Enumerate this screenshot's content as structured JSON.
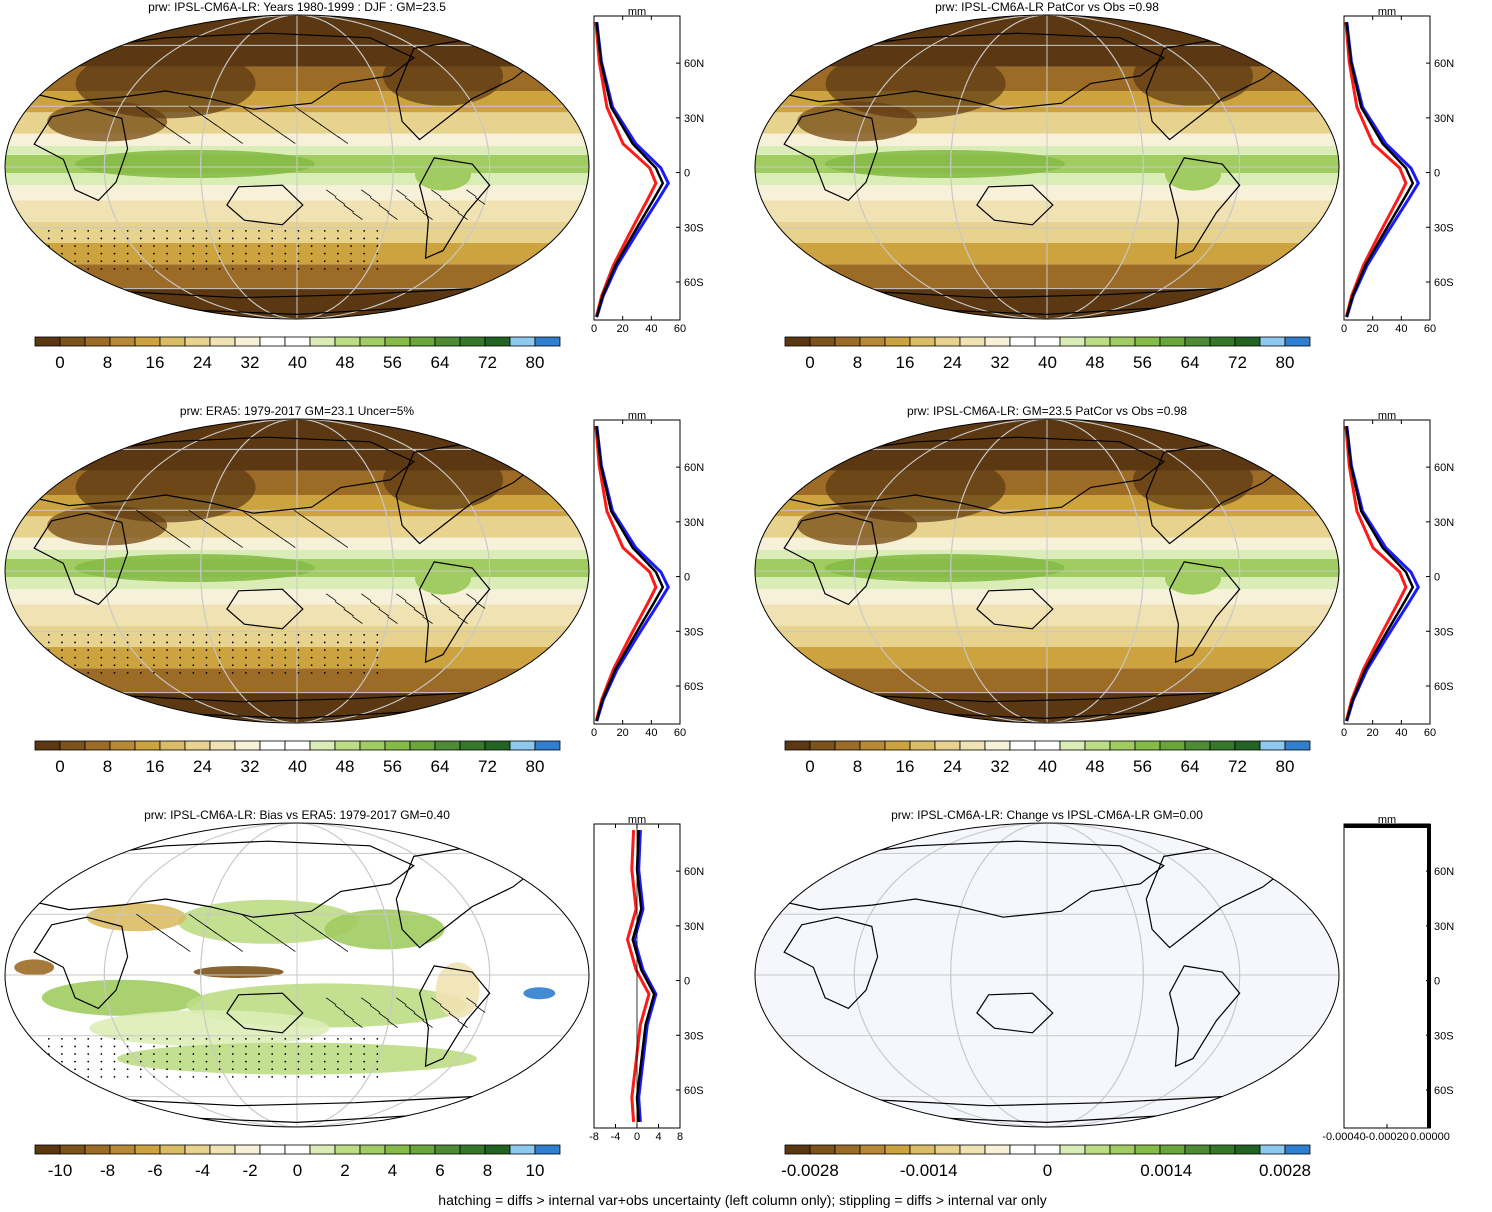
{
  "colorscales": {
    "prw": [
      "#5b3812",
      "#7c5219",
      "#9c6c26",
      "#b88934",
      "#cca33f",
      "#d9bc63",
      "#e7d28e",
      "#f0e2b2",
      "#f7f1d9",
      "#ffffff",
      "#ffffff",
      "#dbedb6",
      "#bddd85",
      "#a1cc61",
      "#85bb47",
      "#68a53b",
      "#4d8c34",
      "#357829",
      "#226421",
      "#8dc8ee",
      "#2f7fd0"
    ],
    "diff": [
      "#5b3812",
      "#7c5219",
      "#9c6c26",
      "#b88934",
      "#cca33f",
      "#d9bc63",
      "#e7d28e",
      "#f0e2b2",
      "#f7f1d9",
      "#ffffff",
      "#ffffff",
      "#dbedb6",
      "#bddd85",
      "#a1cc61",
      "#85bb47",
      "#68a53b",
      "#4d8c34",
      "#357829",
      "#226421",
      "#8dc8ee",
      "#2f7fd0"
    ]
  },
  "panels": [
    {
      "title": "prw: IPSL-CM6A-LR: Years 1980-1999 : DJF : GM=23.5",
      "map_style": "prw",
      "hatch": true,
      "profile": {
        "unit": "mm",
        "x_ticks": [
          "0",
          "20",
          "40",
          "60"
        ],
        "type": "prw"
      },
      "colorbar": {
        "scale": "prw",
        "labels": [
          "0",
          "8",
          "16",
          "24",
          "32",
          "40",
          "48",
          "56",
          "64",
          "72",
          "80"
        ]
      }
    },
    {
      "title": "prw: IPSL-CM6A-LR PatCor vs Obs =0.98",
      "map_style": "prw",
      "hatch": false,
      "profile": {
        "unit": "mm",
        "x_ticks": [
          "0",
          "20",
          "40",
          "60"
        ],
        "type": "prw"
      },
      "colorbar": {
        "scale": "prw",
        "labels": [
          "0",
          "8",
          "16",
          "24",
          "32",
          "40",
          "48",
          "56",
          "64",
          "72",
          "80"
        ]
      }
    },
    {
      "title": "prw: ERA5: 1979-2017 GM=23.1 Uncer=5%",
      "map_style": "prw",
      "hatch": true,
      "profile": {
        "unit": "mm",
        "x_ticks": [
          "0",
          "20",
          "40",
          "60"
        ],
        "type": "prw"
      },
      "colorbar": {
        "scale": "prw",
        "labels": [
          "0",
          "8",
          "16",
          "24",
          "32",
          "40",
          "48",
          "56",
          "64",
          "72",
          "80"
        ]
      }
    },
    {
      "title": "prw: IPSL-CM6A-LR: GM=23.5 PatCor vs Obs =0.98",
      "map_style": "prw",
      "hatch": false,
      "profile": {
        "unit": "mm",
        "x_ticks": [
          "0",
          "20",
          "40",
          "60"
        ],
        "type": "prw"
      },
      "colorbar": {
        "scale": "prw",
        "labels": [
          "0",
          "8",
          "16",
          "24",
          "32",
          "40",
          "48",
          "56",
          "64",
          "72",
          "80"
        ]
      }
    },
    {
      "title": "prw: IPSL-CM6A-LR: Bias vs ERA5: 1979-2017 GM=0.40",
      "map_style": "bias",
      "hatch": true,
      "profile": {
        "unit": "mm",
        "x_ticks": [
          "-8",
          "-4",
          "0",
          "4",
          "8"
        ],
        "type": "bias"
      },
      "colorbar": {
        "scale": "diff",
        "labels": [
          "-10",
          "-8",
          "-6",
          "-4",
          "-2",
          "0",
          "2",
          "4",
          "6",
          "8",
          "10"
        ]
      }
    },
    {
      "title": "prw: IPSL-CM6A-LR: Change vs IPSL-CM6A-LR GM=0.00",
      "map_style": "blank",
      "hatch": false,
      "profile": {
        "unit": "mm",
        "x_ticks": [
          "-0.00040",
          "-0.00020",
          "0.00000"
        ],
        "type": "flat"
      },
      "colorbar": {
        "scale": "diff",
        "labels": [
          "-0.0028",
          "-0.0014",
          "0",
          "0.0014",
          "0.0028"
        ]
      }
    }
  ],
  "lat_labels": [
    "60N",
    "30N",
    "0",
    "30S",
    "60S"
  ],
  "footer": "hatching = diffs > internal var+obs uncertainty (left column only); stippling = diffs > internal var only"
}
